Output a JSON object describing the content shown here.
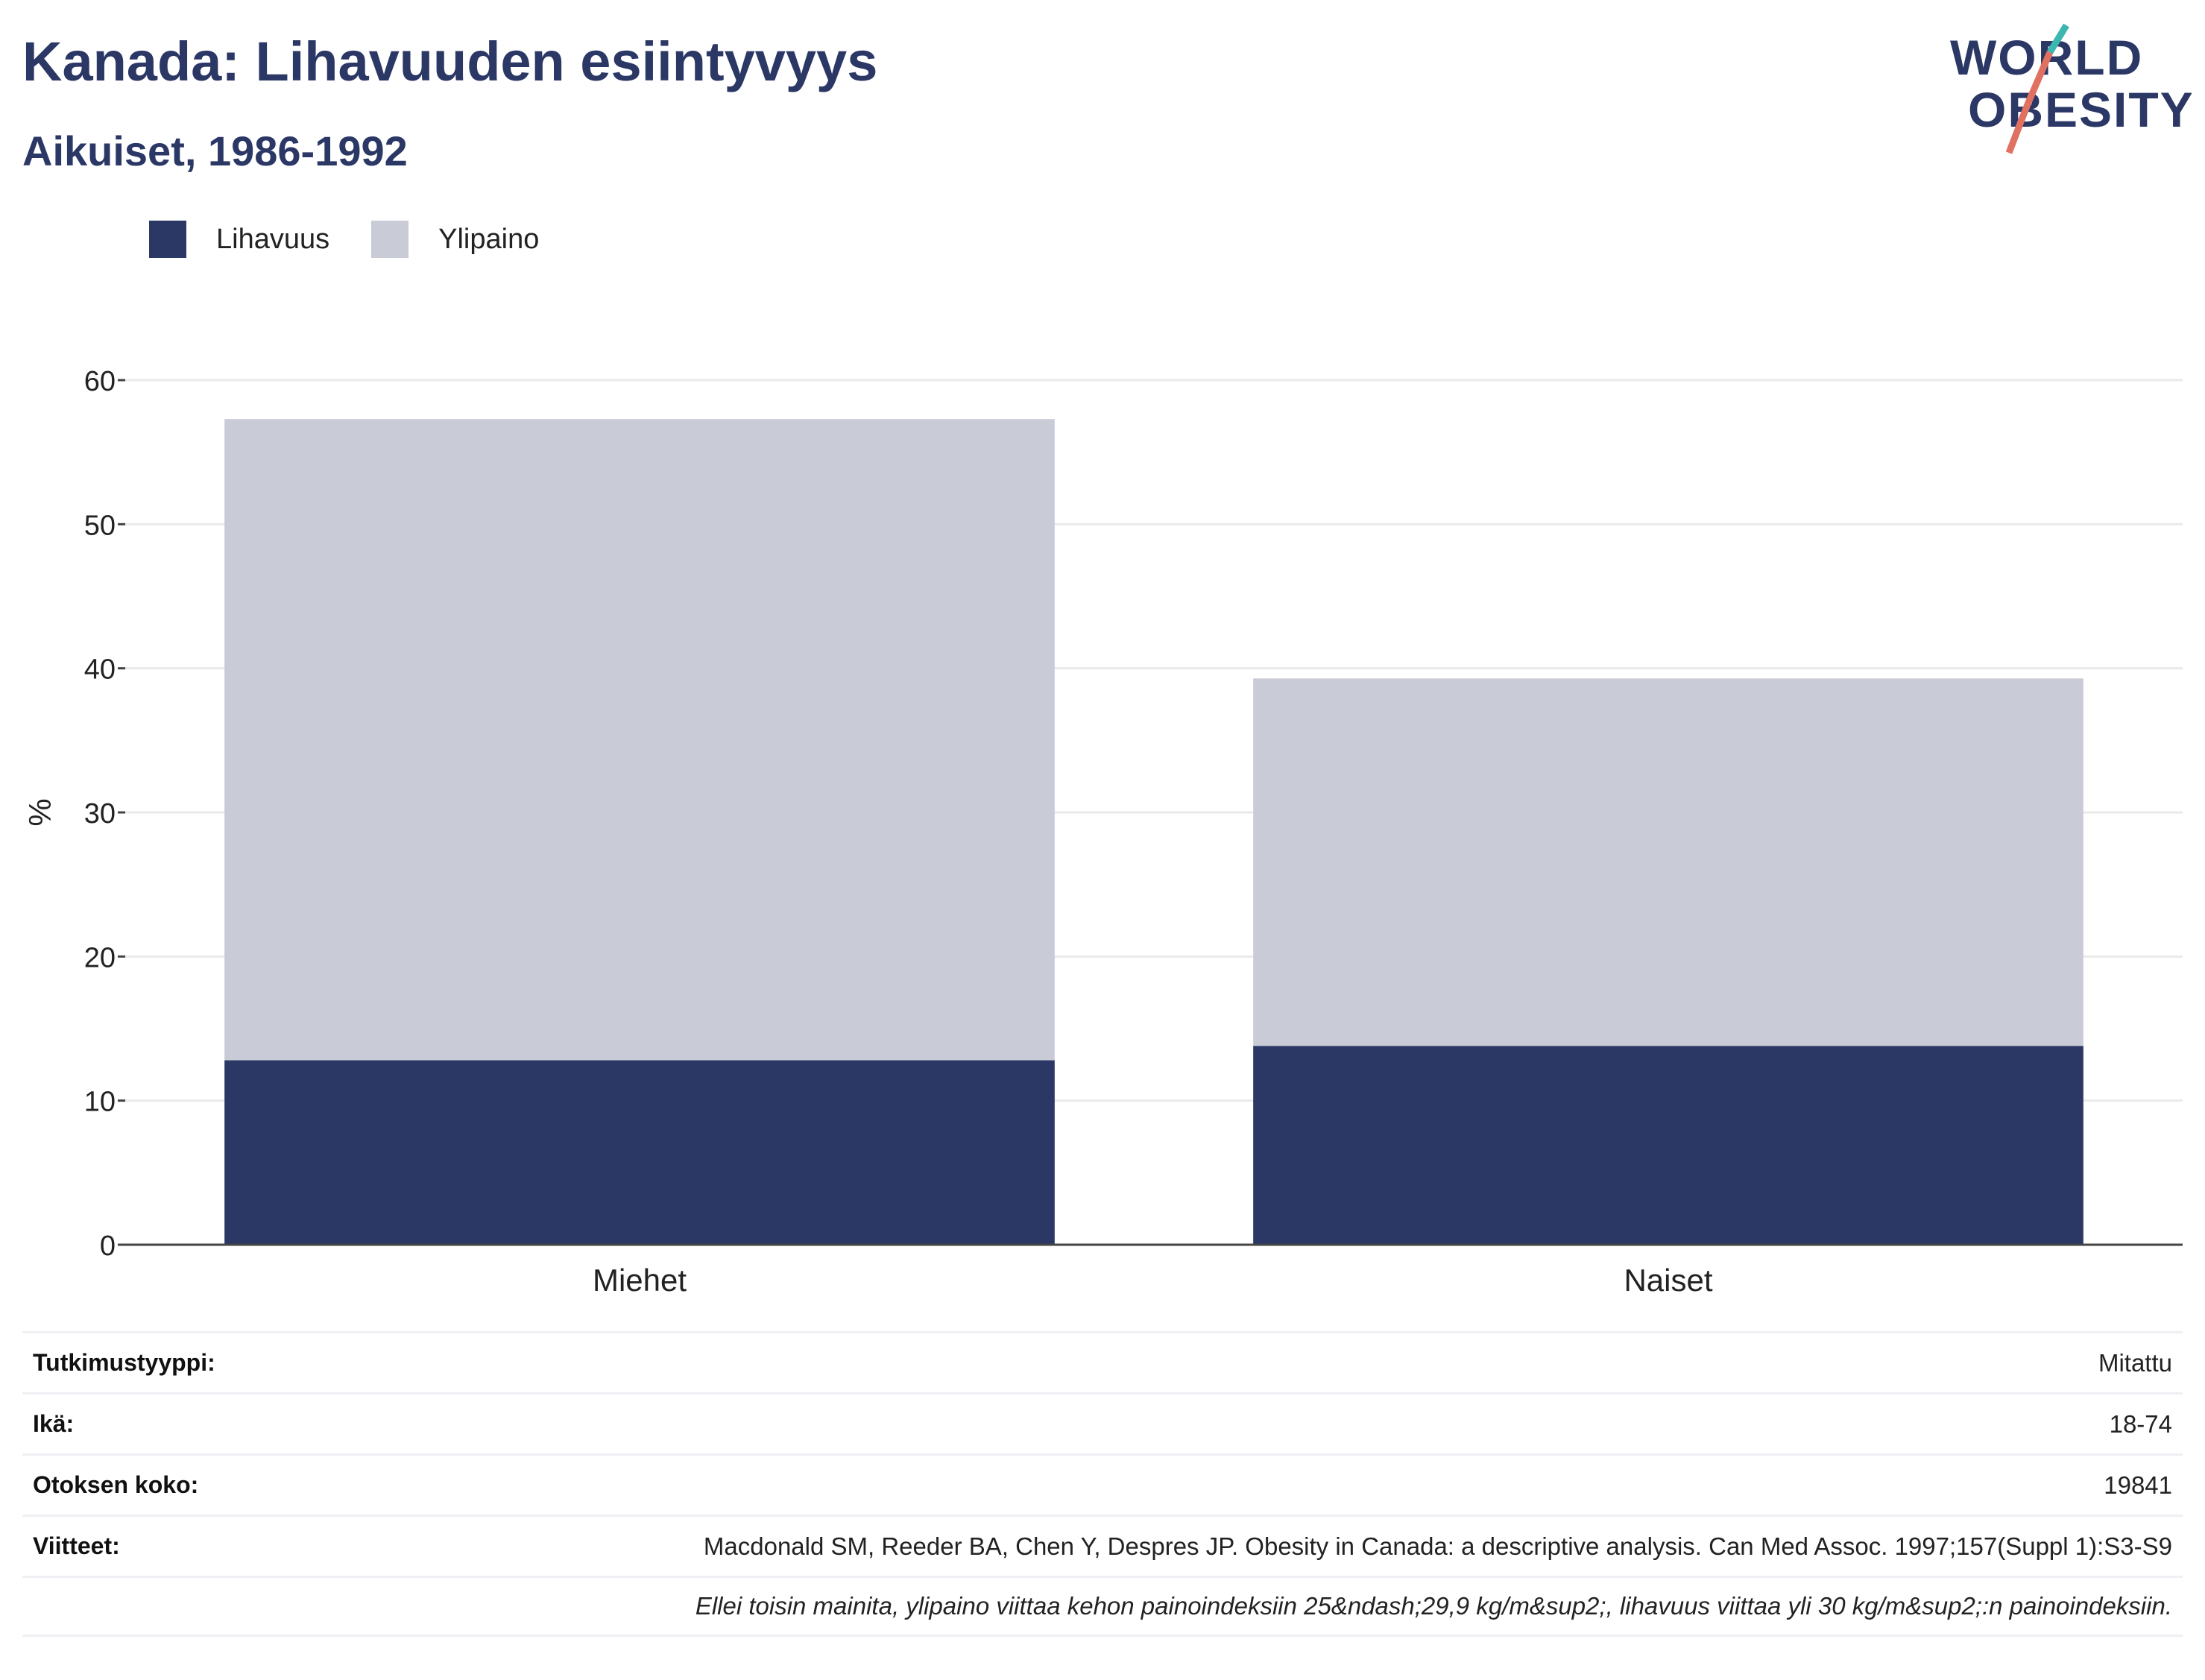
{
  "header": {
    "title": "Kanada: Lihavuuden esiintyvyys",
    "subtitle": "Aikuiset, 1986-1992",
    "logo_line1": "WORLD",
    "logo_line2": "OBESITY"
  },
  "legend": [
    {
      "label": "Lihavuus",
      "color": "#2b3765"
    },
    {
      "label": "Ylipaino",
      "color": "#c9cbd7"
    }
  ],
  "chart_data": {
    "type": "bar",
    "stacked": true,
    "categories": [
      "Miehet",
      "Naiset"
    ],
    "series": [
      {
        "name": "Lihavuus",
        "values": [
          12.8,
          13.8
        ],
        "color": "#2b3765"
      },
      {
        "name": "Ylipaino",
        "values": [
          44.5,
          25.5
        ],
        "color": "#c9cbd7"
      }
    ],
    "ylabel": "%",
    "ylim": [
      0,
      60
    ],
    "yticks": [
      0,
      10,
      20,
      30,
      40,
      50,
      60
    ],
    "grid": true,
    "legend_position": "top-left"
  },
  "info": {
    "study_type_label": "Tutkimustyyppi:",
    "study_type_value": "Mitattu",
    "age_label": "Ikä:",
    "age_value": "18-74",
    "sample_label": "Otoksen koko:",
    "sample_value": "19841",
    "refs_label": "Viitteet:",
    "refs_value": "Macdonald SM, Reeder BA, Chen Y, Despres JP. Obesity in Canada: a descriptive analysis. Can Med Assoc. 1997;157(Suppl 1):S3-S9",
    "note": "Ellei toisin mainita, ylipaino viittaa kehon painoindeksiin 25&ndash;29,9 kg/m&sup2;, lihavuus viittaa yli 30 kg/m&sup2;:n painoindeksiin."
  }
}
